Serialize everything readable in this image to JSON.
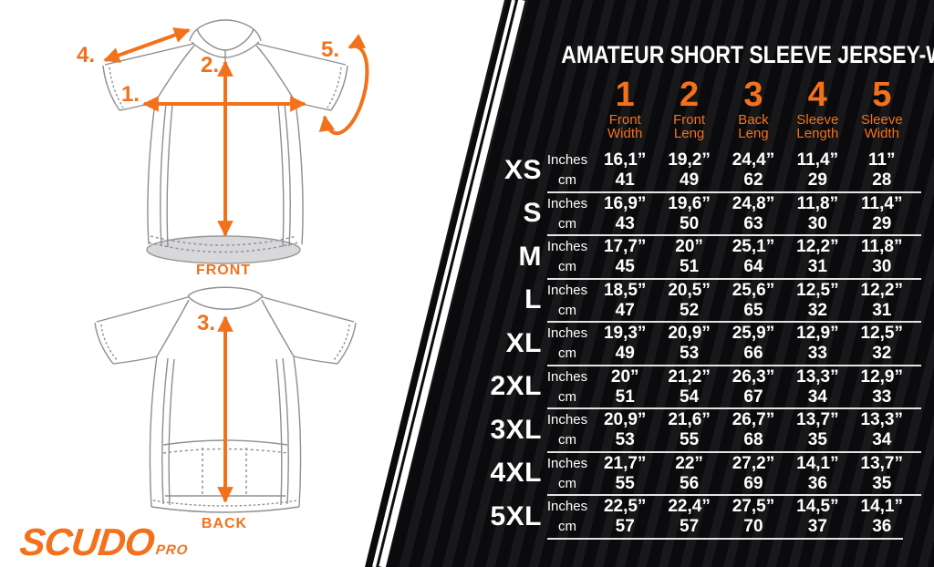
{
  "brand": {
    "name": "SCUDO",
    "suffix": "PRO"
  },
  "diagram": {
    "front_label": "FRONT",
    "back_label": "BACK",
    "markers": {
      "m1": "1.",
      "m2": "2.",
      "m3": "3.",
      "m4": "4.",
      "m5": "5."
    }
  },
  "colors": {
    "accent": "#F4711C",
    "panel": "#0B0B0D",
    "line": "#E3E3E3",
    "outline": "#8F8F93",
    "hem_fill": "#D8D8DB"
  },
  "chart_data": {
    "type": "table",
    "title": "AMATEUR SHORT SLEEVE JERSEY-WOMAN",
    "column_numbers": [
      "1",
      "2",
      "3",
      "4",
      "5"
    ],
    "column_labels": [
      [
        "Front",
        "Width"
      ],
      [
        "Front",
        "Leng"
      ],
      [
        "Back",
        "Leng"
      ],
      [
        "Sleeve",
        "Length"
      ],
      [
        "Sleeve",
        "Width"
      ]
    ],
    "unit_labels": [
      "Inches",
      "cm"
    ],
    "rows": [
      {
        "size": "XS",
        "inches": [
          "16,1”",
          "19,2”",
          "24,4”",
          "11,4”",
          "11”"
        ],
        "cm": [
          "41",
          "49",
          "62",
          "29",
          "28"
        ]
      },
      {
        "size": "S",
        "inches": [
          "16,9”",
          "19,6”",
          "24,8”",
          "11,8”",
          "11,4”"
        ],
        "cm": [
          "43",
          "50",
          "63",
          "30",
          "29"
        ]
      },
      {
        "size": "M",
        "inches": [
          "17,7”",
          "20”",
          "25,1”",
          "12,2”",
          "11,8”"
        ],
        "cm": [
          "45",
          "51",
          "64",
          "31",
          "30"
        ]
      },
      {
        "size": "L",
        "inches": [
          "18,5”",
          "20,5”",
          "25,6”",
          "12,5”",
          "12,2”"
        ],
        "cm": [
          "47",
          "52",
          "65",
          "32",
          "31"
        ]
      },
      {
        "size": "XL",
        "inches": [
          "19,3”",
          "20,9”",
          "25,9”",
          "12,9”",
          "12,5”"
        ],
        "cm": [
          "49",
          "53",
          "66",
          "33",
          "32"
        ]
      },
      {
        "size": "2XL",
        "inches": [
          "20”",
          "21,2”",
          "26,3”",
          "13,3”",
          "12,9”"
        ],
        "cm": [
          "51",
          "54",
          "67",
          "34",
          "33"
        ]
      },
      {
        "size": "3XL",
        "inches": [
          "20,9”",
          "21,6”",
          "26,7”",
          "13,7”",
          "13,3”"
        ],
        "cm": [
          "53",
          "55",
          "68",
          "35",
          "34"
        ]
      },
      {
        "size": "4XL",
        "inches": [
          "21,7”",
          "22”",
          "27,2”",
          "14,1”",
          "13,7”"
        ],
        "cm": [
          "55",
          "56",
          "69",
          "36",
          "35"
        ]
      },
      {
        "size": "5XL",
        "inches": [
          "22,5”",
          "22,4”",
          "27,5”",
          "14,5”",
          "14,1”"
        ],
        "cm": [
          "57",
          "57",
          "70",
          "37",
          "36"
        ]
      }
    ]
  }
}
